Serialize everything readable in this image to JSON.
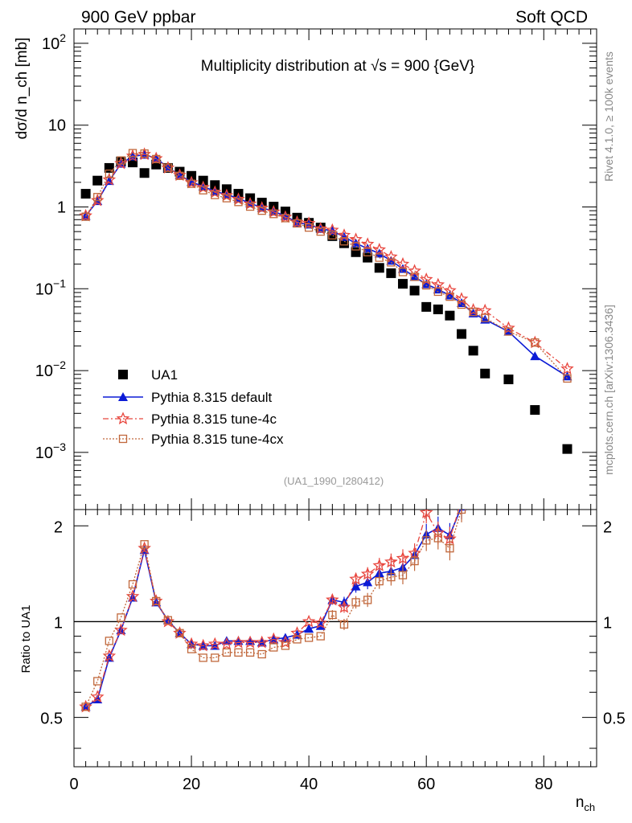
{
  "header": {
    "left": "900 GeV ppbar",
    "right": "Soft QCD"
  },
  "side_labels": {
    "rivet": "Rivet 4.1.0, ≥ 100k events",
    "mcplots": "mcplots.cern.ch [arXiv:1306.3436]"
  },
  "analysis_id": "(UA1_1990_I280412)",
  "colors": {
    "ua1": "#000000",
    "default": "#0b1bd6",
    "tune4c": "#e8473f",
    "tune4cx": "#c1683c"
  },
  "chart_data": [
    {
      "type": "scatter",
      "title": "Multiplicity distribution at √s = 900 {GeV}",
      "ylabel": "dσ/d n_ch [mb]",
      "xlabel": "n_ch",
      "yscale": "log",
      "xlim": [
        0,
        89
      ],
      "ylim": [
        0.0002,
        150
      ],
      "yticklabels": [
        "10^-3",
        "10^-2",
        "10^-1",
        "1",
        "10",
        "10^2"
      ],
      "legend": [
        "UA1",
        "Pythia 8.315 default",
        "Pythia 8.315 tune-4c",
        "Pythia 8.315 tune-4cx"
      ],
      "series": [
        {
          "name": "UA1",
          "marker": "square",
          "x": [
            2,
            4,
            6,
            8,
            10,
            12,
            14,
            16,
            18,
            20,
            22,
            24,
            26,
            28,
            30,
            32,
            34,
            36,
            38,
            40,
            42,
            44,
            46,
            48,
            50,
            52,
            54,
            56,
            58,
            60,
            62,
            64,
            66,
            68,
            70,
            74,
            78.5,
            84
          ],
          "y": [
            1.45,
            2.1,
            3.0,
            3.6,
            3.5,
            2.6,
            3.3,
            3.0,
            2.7,
            2.4,
            2.1,
            1.85,
            1.65,
            1.45,
            1.28,
            1.13,
            1.01,
            0.88,
            0.74,
            0.64,
            0.56,
            0.44,
            0.36,
            0.28,
            0.24,
            0.18,
            0.155,
            0.115,
            0.095,
            0.06,
            0.056,
            0.047,
            0.028,
            0.0175,
            0.0092,
            0.0078,
            0.0033,
            0.0011
          ]
        },
        {
          "name": "Pythia 8.315 default",
          "marker": "triangle",
          "x": [
            2,
            4,
            6,
            8,
            10,
            12,
            14,
            16,
            18,
            20,
            22,
            24,
            26,
            28,
            30,
            32,
            34,
            36,
            38,
            40,
            42,
            44,
            46,
            48,
            50,
            52,
            54,
            56,
            58,
            60,
            62,
            64,
            66,
            68,
            70,
            74,
            78.5,
            84
          ],
          "y": [
            0.78,
            1.18,
            2.08,
            3.38,
            4.15,
            4.35,
            3.95,
            3.02,
            2.46,
            2.02,
            1.78,
            1.55,
            1.42,
            1.27,
            1.11,
            0.98,
            0.88,
            0.78,
            0.64,
            0.61,
            0.54,
            0.51,
            0.43,
            0.36,
            0.31,
            0.27,
            0.22,
            0.175,
            0.14,
            0.114,
            0.098,
            0.083,
            0.067,
            0.05,
            0.042,
            0.03,
            0.015,
            0.0085
          ]
        },
        {
          "name": "Pythia 8.315 tune-4c",
          "marker": "star",
          "x": [
            2,
            4,
            6,
            8,
            10,
            12,
            14,
            16,
            18,
            20,
            22,
            24,
            26,
            28,
            30,
            32,
            34,
            36,
            38,
            40,
            42,
            44,
            46,
            48,
            50,
            52,
            54,
            56,
            58,
            60,
            62,
            64,
            66,
            68,
            70,
            74,
            78.5,
            84
          ],
          "y": [
            0.78,
            1.2,
            2.15,
            3.4,
            4.2,
            4.4,
            3.9,
            3.0,
            2.44,
            1.98,
            1.73,
            1.51,
            1.38,
            1.24,
            1.09,
            0.97,
            0.87,
            0.75,
            0.65,
            0.63,
            0.54,
            0.52,
            0.45,
            0.4,
            0.35,
            0.3,
            0.245,
            0.2,
            0.165,
            0.13,
            0.112,
            0.095,
            0.075,
            0.055,
            0.054,
            0.033,
            0.022,
            0.0105
          ]
        },
        {
          "name": "Pythia 8.315 tune-4cx",
          "marker": "open-square",
          "x": [
            2,
            4,
            6,
            8,
            10,
            12,
            14,
            16,
            18,
            20,
            22,
            24,
            26,
            28,
            30,
            32,
            34,
            36,
            38,
            40,
            42,
            44,
            46,
            48,
            50,
            52,
            54,
            56,
            58,
            60,
            62,
            64,
            66,
            68,
            70,
            74,
            78.5,
            84
          ],
          "y": [
            0.76,
            1.32,
            2.55,
            3.7,
            4.55,
            4.5,
            3.85,
            3.02,
            2.4,
            1.92,
            1.6,
            1.4,
            1.28,
            1.15,
            1.01,
            0.9,
            0.82,
            0.73,
            0.63,
            0.56,
            0.5,
            0.45,
            0.38,
            0.33,
            0.28,
            0.24,
            0.21,
            0.16,
            0.14,
            0.11,
            0.092,
            0.08,
            0.064,
            0.052,
            0.044,
            0.03,
            0.022,
            0.008
          ]
        }
      ]
    },
    {
      "type": "line",
      "ylabel": "Ratio to UA1",
      "xlabel": "n_ch",
      "xlim": [
        0,
        89
      ],
      "ylim": [
        0.35,
        2.25
      ],
      "xticks": [
        0,
        20,
        40,
        60,
        80
      ],
      "yticks": [
        0.5,
        1,
        2
      ],
      "reference": 1,
      "series": [
        {
          "name": "Pythia 8.315 default",
          "x": [
            2,
            4,
            6,
            8,
            10,
            12,
            14,
            16,
            18,
            20,
            22,
            24,
            26,
            28,
            30,
            32,
            34,
            36,
            38,
            40,
            42,
            44,
            46,
            48,
            50,
            52,
            54,
            56,
            58,
            60,
            62,
            64,
            66
          ],
          "y": [
            0.54,
            0.57,
            0.77,
            0.94,
            1.19,
            1.68,
            1.15,
            1.01,
            0.92,
            0.85,
            0.84,
            0.84,
            0.87,
            0.87,
            0.87,
            0.86,
            0.88,
            0.89,
            0.91,
            0.95,
            0.97,
            1.17,
            1.15,
            1.29,
            1.33,
            1.42,
            1.44,
            1.48,
            1.62,
            1.88,
            1.97,
            1.87,
            2.3
          ]
        },
        {
          "name": "Pythia 8.315 tune-4c",
          "x": [
            2,
            4,
            6,
            8,
            10,
            12,
            14,
            16,
            18,
            20,
            22,
            24,
            26,
            28,
            30,
            32,
            34,
            36,
            38,
            40,
            42,
            44,
            46,
            48,
            50,
            52,
            54,
            56,
            58,
            60,
            62,
            64,
            66
          ],
          "y": [
            0.54,
            0.58,
            0.78,
            0.94,
            1.2,
            1.7,
            1.16,
            1.0,
            0.92,
            0.85,
            0.84,
            0.85,
            0.85,
            0.86,
            0.86,
            0.86,
            0.88,
            0.86,
            0.92,
            1.0,
            0.99,
            1.17,
            1.11,
            1.36,
            1.41,
            1.5,
            1.54,
            1.58,
            1.64,
            2.2,
            1.9,
            1.82,
            2.4
          ]
        },
        {
          "name": "Pythia 8.315 tune-4cx",
          "x": [
            2,
            4,
            6,
            8,
            10,
            12,
            14,
            16,
            18,
            20,
            22,
            24,
            26,
            28,
            30,
            32,
            34,
            36,
            38,
            40,
            42,
            44,
            46,
            48,
            50,
            52,
            54,
            56,
            58,
            60,
            62,
            64,
            66
          ],
          "y": [
            0.54,
            0.65,
            0.87,
            1.03,
            1.31,
            1.75,
            1.16,
            1.01,
            0.92,
            0.82,
            0.77,
            0.77,
            0.8,
            0.8,
            0.8,
            0.79,
            0.83,
            0.84,
            0.88,
            0.89,
            0.9,
            1.05,
            0.98,
            1.15,
            1.17,
            1.34,
            1.38,
            1.4,
            1.55,
            1.8,
            1.83,
            1.7,
            2.25
          ]
        }
      ]
    }
  ]
}
